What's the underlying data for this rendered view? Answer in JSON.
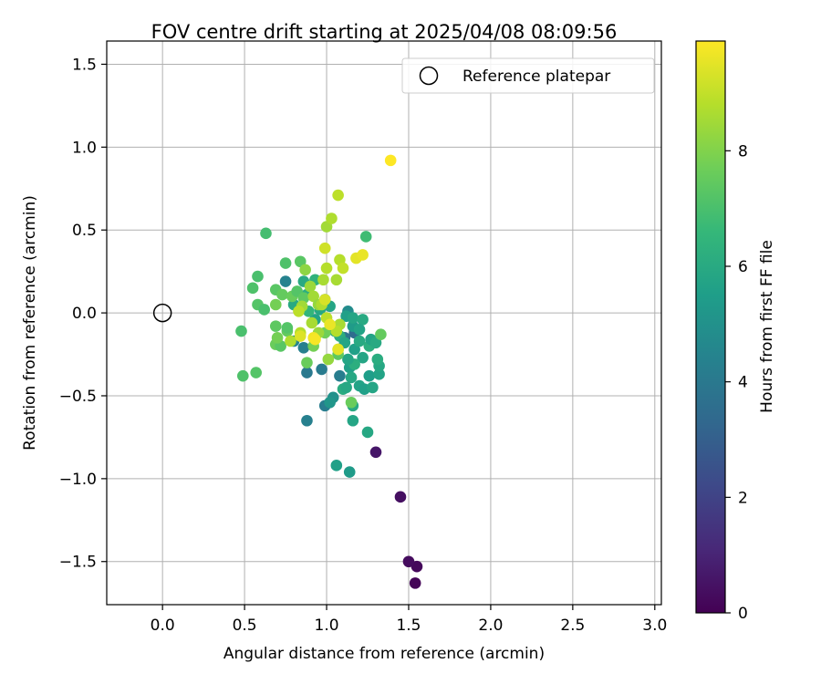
{
  "chart_data": {
    "type": "scatter",
    "title": "FOV centre drift starting at 2025/04/08 08:09:56",
    "xlabel": "Angular distance from reference (arcmin)",
    "ylabel": "Rotation from reference (arcmin)",
    "xlim": [
      -0.34,
      3.04
    ],
    "ylim": [
      -1.76,
      1.64
    ],
    "xticks": [
      0.0,
      0.5,
      1.0,
      1.5,
      2.0,
      2.5,
      3.0
    ],
    "xtick_labels": [
      "0.0",
      "0.5",
      "1.0",
      "1.5",
      "2.0",
      "2.5",
      "3.0"
    ],
    "yticks": [
      -1.5,
      -1.0,
      -0.5,
      0.0,
      0.5,
      1.0,
      1.5
    ],
    "ytick_labels": [
      "−1.5",
      "−1.0",
      "−0.5",
      "0.0",
      "0.5",
      "1.0",
      "1.5"
    ],
    "grid": true,
    "legend": {
      "position": "top-right",
      "entries": [
        "Reference platepar"
      ]
    },
    "reference_point": {
      "x": 0.0,
      "y": 0.0
    },
    "colorbar": {
      "label": "Hours from first FF file",
      "colormap": "viridis",
      "range": [
        0,
        9.9
      ],
      "ticks": [
        0,
        2,
        4,
        6,
        8
      ],
      "tick_labels": [
        "0",
        "2",
        "4",
        "6",
        "8"
      ],
      "colors": [
        "#440154",
        "#482878",
        "#3e4989",
        "#31688e",
        "#26828e",
        "#1f9e89",
        "#35b779",
        "#6ece58",
        "#b5de2b",
        "#fde725"
      ]
    },
    "points": [
      [
        1.54,
        -1.63,
        0.1
      ],
      [
        1.55,
        -1.53,
        0.2
      ],
      [
        1.5,
        -1.5,
        0.3
      ],
      [
        1.45,
        -1.11,
        0.4
      ],
      [
        1.3,
        -0.84,
        0.6
      ],
      [
        0.88,
        -0.65,
        4.3
      ],
      [
        0.99,
        -0.56,
        4.2
      ],
      [
        0.97,
        -0.34,
        4.1
      ],
      [
        0.88,
        -0.36,
        4.0
      ],
      [
        0.86,
        -0.21,
        4.3
      ],
      [
        0.8,
        -0.17,
        4.5
      ],
      [
        0.75,
        0.19,
        4.4
      ],
      [
        1.08,
        -0.38,
        4.2
      ],
      [
        1.11,
        -0.15,
        3.8
      ],
      [
        1.17,
        -0.12,
        3.5
      ],
      [
        1.13,
        0.01,
        4.8
      ],
      [
        1.04,
        -0.51,
        5.0
      ],
      [
        1.02,
        -0.54,
        5.2
      ],
      [
        1.06,
        -0.92,
        5.6
      ],
      [
        1.14,
        -0.96,
        5.4
      ],
      [
        1.16,
        -0.65,
        5.8
      ],
      [
        1.25,
        -0.72,
        5.9
      ],
      [
        1.16,
        -0.56,
        6.0
      ],
      [
        1.1,
        -0.46,
        6.1
      ],
      [
        1.12,
        -0.45,
        5.9
      ],
      [
        1.2,
        -0.44,
        5.7
      ],
      [
        1.23,
        -0.46,
        5.6
      ],
      [
        1.28,
        -0.45,
        5.8
      ],
      [
        1.26,
        -0.38,
        5.5
      ],
      [
        1.32,
        -0.37,
        5.7
      ],
      [
        1.32,
        -0.32,
        5.9
      ],
      [
        1.31,
        -0.28,
        6.1
      ],
      [
        1.22,
        -0.27,
        5.8
      ],
      [
        1.17,
        -0.22,
        5.6
      ],
      [
        1.2,
        -0.17,
        6.0
      ],
      [
        1.26,
        -0.2,
        6.2
      ],
      [
        1.27,
        -0.16,
        5.7
      ],
      [
        1.3,
        -0.18,
        6.0
      ],
      [
        1.14,
        -0.33,
        5.6
      ],
      [
        1.15,
        -0.39,
        5.9
      ],
      [
        1.17,
        -0.31,
        6.2
      ],
      [
        1.13,
        -0.28,
        5.8
      ],
      [
        1.16,
        -0.08,
        5.4
      ],
      [
        1.12,
        -0.02,
        5.6
      ],
      [
        1.16,
        -0.03,
        5.8
      ],
      [
        1.22,
        -0.04,
        6.0
      ],
      [
        1.2,
        -0.1,
        5.7
      ],
      [
        1.05,
        -0.11,
        5.9
      ],
      [
        1.08,
        -0.14,
        6.1
      ],
      [
        1.11,
        -0.18,
        5.8
      ],
      [
        0.93,
        -0.04,
        5.7
      ],
      [
        0.96,
        0.02,
        5.9
      ],
      [
        0.99,
        0.08,
        5.5
      ],
      [
        1.02,
        0.04,
        5.8
      ],
      [
        0.88,
        0.11,
        6.2
      ],
      [
        0.86,
        0.19,
        6.0
      ],
      [
        0.93,
        0.2,
        6.4
      ],
      [
        0.8,
        0.05,
        6.0
      ],
      [
        0.89,
        0.01,
        6.5
      ],
      [
        1.24,
        0.46,
        6.8
      ],
      [
        0.63,
        0.48,
        6.9
      ],
      [
        0.58,
        0.22,
        7.0
      ],
      [
        0.55,
        0.15,
        7.1
      ],
      [
        0.58,
        0.05,
        7.2
      ],
      [
        0.62,
        0.02,
        7.0
      ],
      [
        0.69,
        0.14,
        7.3
      ],
      [
        0.73,
        0.11,
        7.5
      ],
      [
        0.75,
        0.3,
        7.1
      ],
      [
        0.84,
        0.31,
        7.3
      ],
      [
        0.79,
        0.1,
        7.6
      ],
      [
        0.82,
        0.13,
        7.2
      ],
      [
        0.86,
        0.09,
        7.4
      ],
      [
        0.69,
        0.05,
        7.8
      ],
      [
        0.48,
        -0.11,
        7.0
      ],
      [
        0.49,
        -0.38,
        7.1
      ],
      [
        0.57,
        -0.36,
        7.2
      ],
      [
        0.69,
        -0.08,
        7.4
      ],
      [
        0.69,
        -0.19,
        7.6
      ],
      [
        0.72,
        -0.2,
        7.3
      ],
      [
        0.7,
        -0.15,
        7.8
      ],
      [
        0.76,
        -0.11,
        7.5
      ],
      [
        0.76,
        -0.09,
        7.2
      ],
      [
        0.88,
        -0.3,
        7.6
      ],
      [
        0.92,
        -0.2,
        7.8
      ],
      [
        0.99,
        -0.12,
        7.7
      ],
      [
        1.07,
        -0.25,
        7.4
      ],
      [
        1.15,
        -0.54,
        7.6
      ],
      [
        1.33,
        -0.13,
        7.5
      ],
      [
        0.87,
        0.26,
        8.2
      ],
      [
        0.9,
        0.16,
        8.4
      ],
      [
        0.98,
        0.2,
        8.6
      ],
      [
        1.0,
        0.27,
        8.8
      ],
      [
        0.92,
        0.1,
        8.5
      ],
      [
        0.95,
        0.05,
        8.3
      ],
      [
        0.97,
        0.05,
        8.7
      ],
      [
        0.85,
        0.04,
        8.5
      ],
      [
        0.83,
        0.01,
        8.9
      ],
      [
        0.91,
        -0.06,
        8.6
      ],
      [
        0.95,
        -0.12,
        8.4
      ],
      [
        0.84,
        -0.12,
        8.8
      ],
      [
        0.78,
        -0.17,
        8.7
      ],
      [
        1.0,
        -0.03,
        8.9
      ],
      [
        1.08,
        -0.07,
        8.6
      ],
      [
        1.06,
        -0.11,
        8.8
      ],
      [
        1.01,
        -0.28,
        8.3
      ],
      [
        1.07,
        -0.22,
        8.5
      ],
      [
        1.0,
        0.52,
        8.5
      ],
      [
        1.03,
        0.57,
        8.7
      ],
      [
        1.07,
        0.71,
        8.9
      ],
      [
        1.06,
        0.2,
        8.6
      ],
      [
        1.08,
        0.32,
        8.8
      ],
      [
        1.1,
        0.27,
        9.0
      ],
      [
        0.99,
        0.39,
        9.2
      ],
      [
        1.18,
        0.33,
        9.5
      ],
      [
        1.22,
        0.35,
        9.6
      ],
      [
        1.39,
        0.92,
        9.9
      ],
      [
        0.92,
        -0.15,
        9.7
      ],
      [
        1.07,
        -0.22,
        9.5
      ],
      [
        0.84,
        -0.14,
        9.4
      ],
      [
        0.93,
        -0.16,
        9.8
      ],
      [
        1.02,
        -0.07,
        9.6
      ],
      [
        0.99,
        0.08,
        9.3
      ]
    ]
  }
}
